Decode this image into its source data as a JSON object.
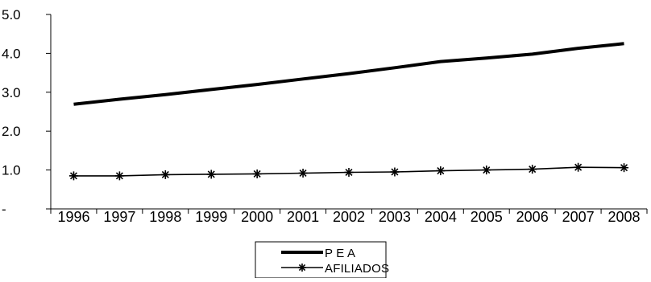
{
  "chart_data": {
    "type": "line",
    "categories": [
      "1996",
      "1997",
      "1998",
      "1999",
      "2000",
      "2001",
      "2002",
      "2003",
      "2004",
      "2005",
      "2006",
      "2007",
      "2008"
    ],
    "ylim": [
      0,
      5
    ],
    "yticks": [
      0,
      1,
      2,
      3,
      4,
      5
    ],
    "ytick_labels": [
      "-",
      "1.0",
      "2.0",
      "3.0",
      "4.0",
      "5.0"
    ],
    "grid": false,
    "legend_position": "bottom-center",
    "series": [
      {
        "name": "P E A",
        "values": [
          2.69,
          2.82,
          2.94,
          3.07,
          3.2,
          3.34,
          3.48,
          3.63,
          3.79,
          3.88,
          3.98,
          4.13,
          4.25
        ],
        "color": "#000000",
        "marker": "none",
        "line_weight": "thick"
      },
      {
        "name": "AFILIADOS",
        "values": [
          0.85,
          0.85,
          0.88,
          0.89,
          0.9,
          0.92,
          0.94,
          0.95,
          0.98,
          1.0,
          1.02,
          1.07,
          1.06
        ],
        "color": "#000000",
        "marker": "asterisk",
        "line_weight": "thin"
      }
    ]
  }
}
